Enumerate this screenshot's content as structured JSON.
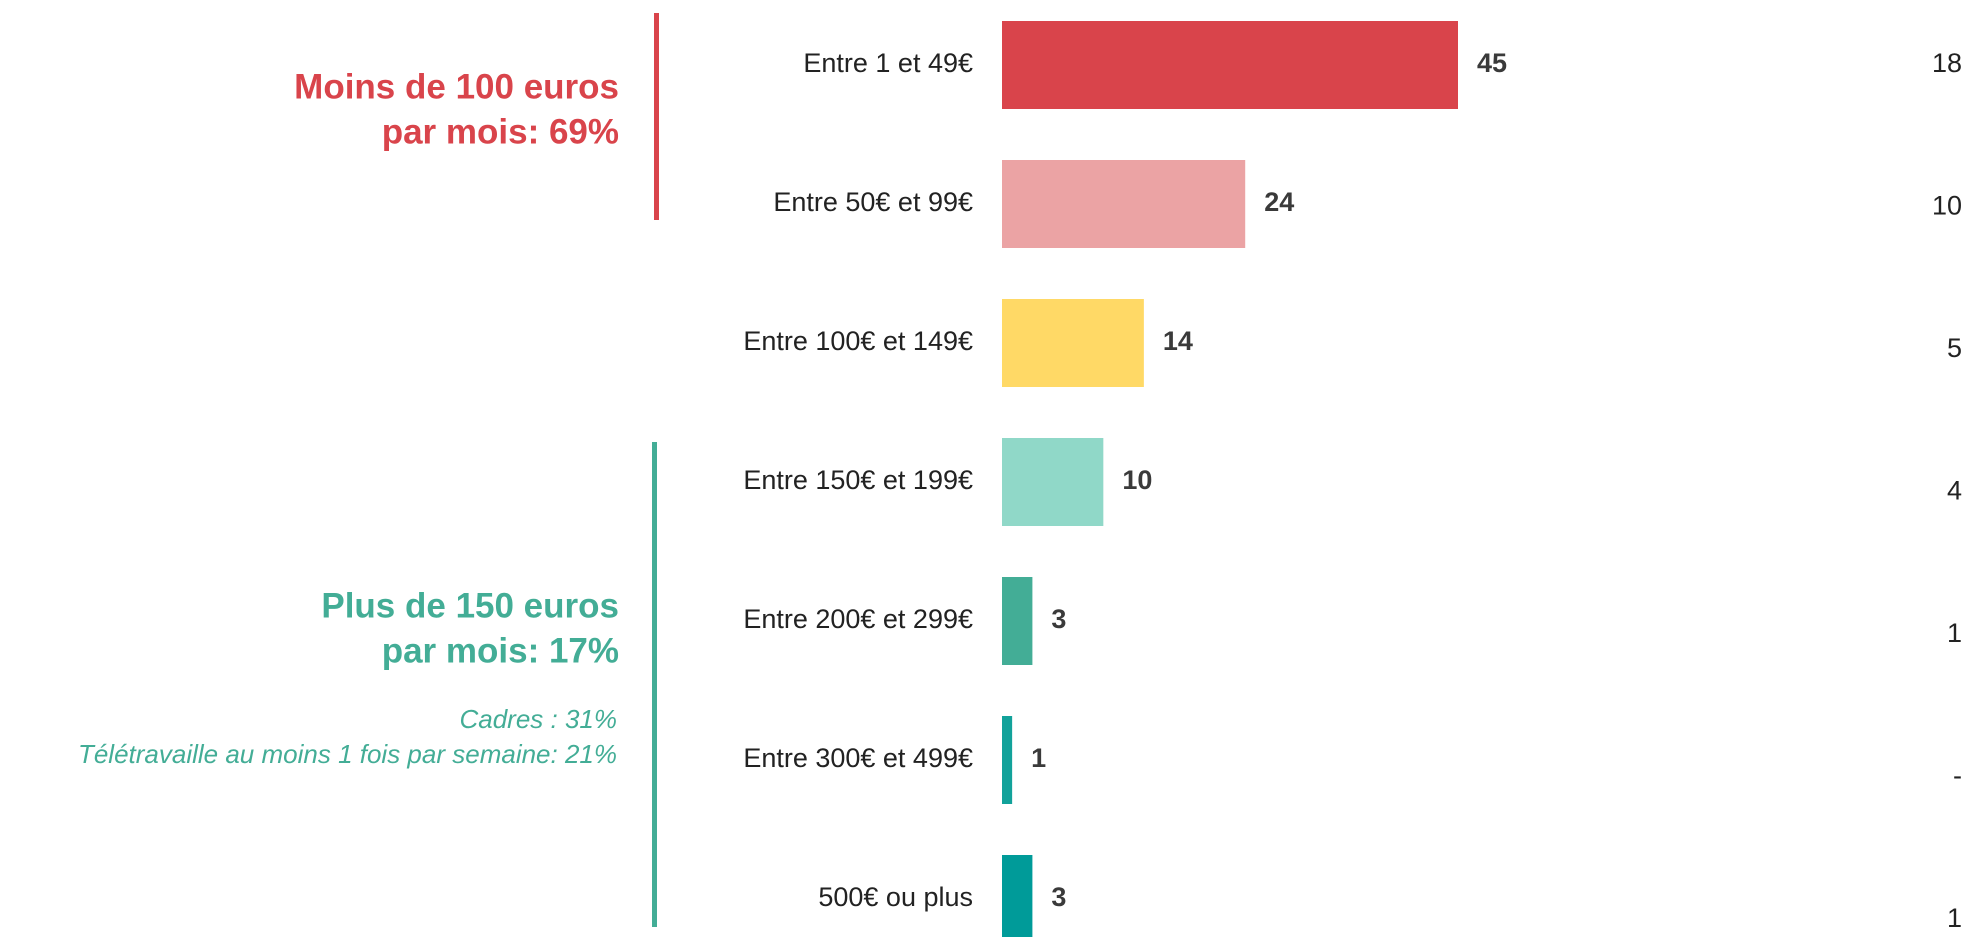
{
  "chart_data": {
    "type": "hbar",
    "categories": [
      "Entre 1 et 49€",
      "Entre 50€ et 99€",
      "Entre 100€ et 149€",
      "Entre 150€ et 199€",
      "Entre 200€ et 299€",
      "Entre 300€ et 499€",
      "500€ ou plus"
    ],
    "values": [
      45,
      24,
      14,
      10,
      3,
      1,
      3
    ],
    "colors": [
      "#d9444b",
      "#eba3a4",
      "#ffd966",
      "#90d8c8",
      "#43ad96",
      "#12a29a",
      "#009b99"
    ],
    "column2": {
      "values": [
        18,
        10,
        5,
        4,
        1,
        null,
        1
      ],
      "value_labels": [
        "18",
        "10",
        "5",
        "4",
        "1",
        "-",
        "1"
      ]
    },
    "annotations": [
      {
        "lines": [
          "Moins de 100 euros",
          "par mois: 69%"
        ],
        "color": "#d9444b"
      },
      {
        "lines": [
          "Plus de 150 euros",
          "par mois: 17%"
        ],
        "color": "#43ad96",
        "notes": [
          "Cadres : 31%",
          "Télétravaille au moins 1 fois par semaine: 21%"
        ]
      }
    ]
  }
}
